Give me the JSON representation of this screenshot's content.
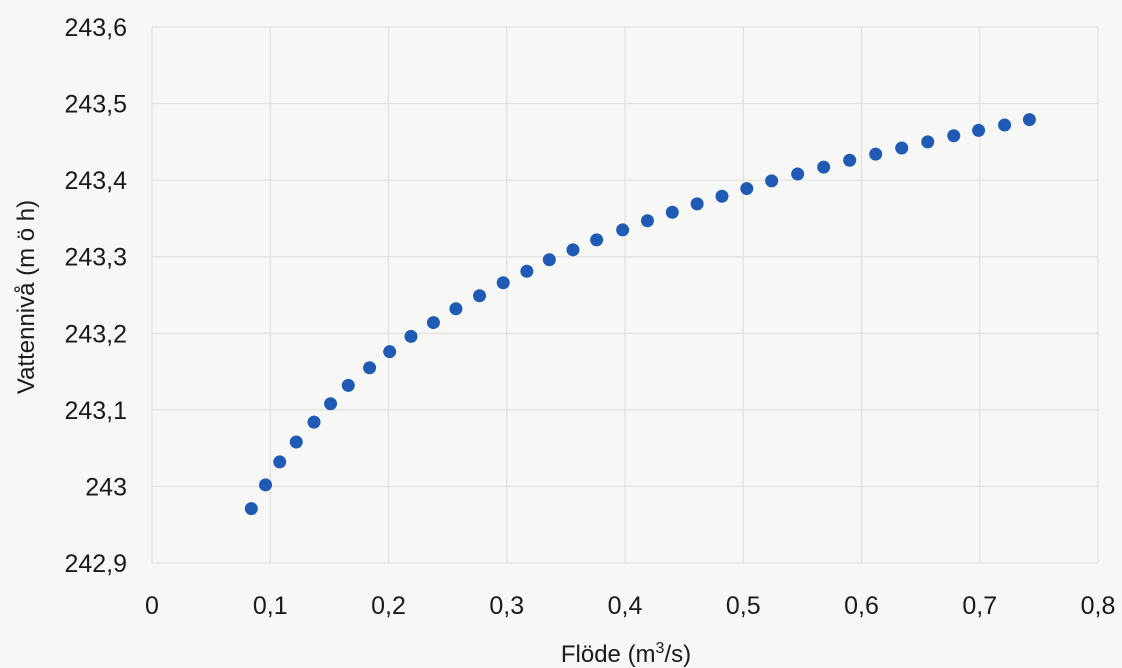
{
  "chart_data": {
    "type": "scatter",
    "title": "",
    "xlabel": "Flöde (m³/s)",
    "xlabel_base": "Flöde (m",
    "xlabel_sup": "3",
    "xlabel_tail": "/s)",
    "ylabel": "Vattennivå (m ö h)",
    "xlim": [
      0,
      0.8
    ],
    "ylim": [
      242.9,
      243.6
    ],
    "x_ticks": [
      "0",
      "0,1",
      "0,2",
      "0,3",
      "0,4",
      "0,5",
      "0,6",
      "0,7",
      "0,8"
    ],
    "y_ticks": [
      "242,9",
      "243",
      "243,1",
      "243,2",
      "243,3",
      "243,4",
      "243,5",
      "243,6"
    ],
    "grid": true,
    "marker_color": "#1f5bb5",
    "series": [
      {
        "points": [
          [
            0.084,
            242.971
          ],
          [
            0.096,
            243.002
          ],
          [
            0.108,
            243.032
          ],
          [
            0.122,
            243.058
          ],
          [
            0.137,
            243.084
          ],
          [
            0.151,
            243.108
          ],
          [
            0.166,
            243.132
          ],
          [
            0.184,
            243.155
          ],
          [
            0.201,
            243.176
          ],
          [
            0.219,
            243.196
          ],
          [
            0.238,
            243.214
          ],
          [
            0.257,
            243.232
          ],
          [
            0.277,
            243.249
          ],
          [
            0.297,
            243.266
          ],
          [
            0.317,
            243.281
          ],
          [
            0.336,
            243.296
          ],
          [
            0.356,
            243.309
          ],
          [
            0.376,
            243.322
          ],
          [
            0.398,
            243.335
          ],
          [
            0.419,
            243.347
          ],
          [
            0.44,
            243.358
          ],
          [
            0.461,
            243.369
          ],
          [
            0.482,
            243.379
          ],
          [
            0.503,
            243.389
          ],
          [
            0.524,
            243.399
          ],
          [
            0.546,
            243.408
          ],
          [
            0.568,
            243.417
          ],
          [
            0.59,
            243.426
          ],
          [
            0.612,
            243.434
          ],
          [
            0.634,
            243.442
          ],
          [
            0.656,
            243.45
          ],
          [
            0.678,
            243.458
          ],
          [
            0.699,
            243.465
          ],
          [
            0.721,
            243.472
          ],
          [
            0.742,
            243.479
          ]
        ]
      }
    ]
  }
}
